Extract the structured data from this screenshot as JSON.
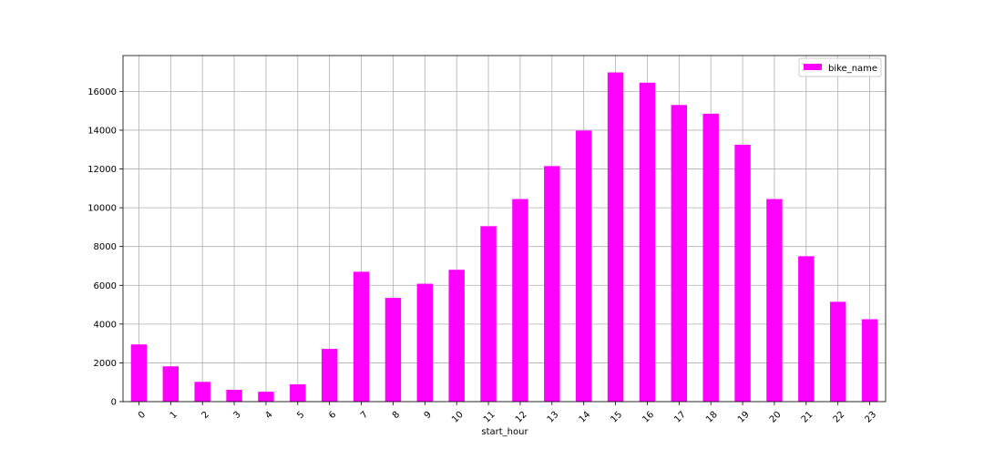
{
  "chart_data": {
    "type": "bar",
    "categories": [
      "0",
      "1",
      "2",
      "3",
      "4",
      "5",
      "6",
      "7",
      "8",
      "9",
      "10",
      "11",
      "12",
      "13",
      "14",
      "15",
      "16",
      "17",
      "18",
      "19",
      "20",
      "21",
      "22",
      "23"
    ],
    "series": [
      {
        "name": "bike_name",
        "color": "#ff00ff",
        "values": [
          2950,
          1820,
          1020,
          610,
          510,
          890,
          2720,
          6700,
          5350,
          6080,
          6800,
          9050,
          10450,
          12150,
          13980,
          16980,
          16450,
          15300,
          14850,
          13250,
          10450,
          7500,
          5150,
          4250
        ]
      }
    ],
    "xlabel": "start_hour",
    "ylabel": "",
    "ylim": [
      0,
      17850
    ],
    "yticks": [
      0,
      2000,
      4000,
      6000,
      8000,
      10000,
      12000,
      14000,
      16000
    ],
    "grid": true,
    "legend_position": "top-right",
    "xtick_rotation": 45
  }
}
